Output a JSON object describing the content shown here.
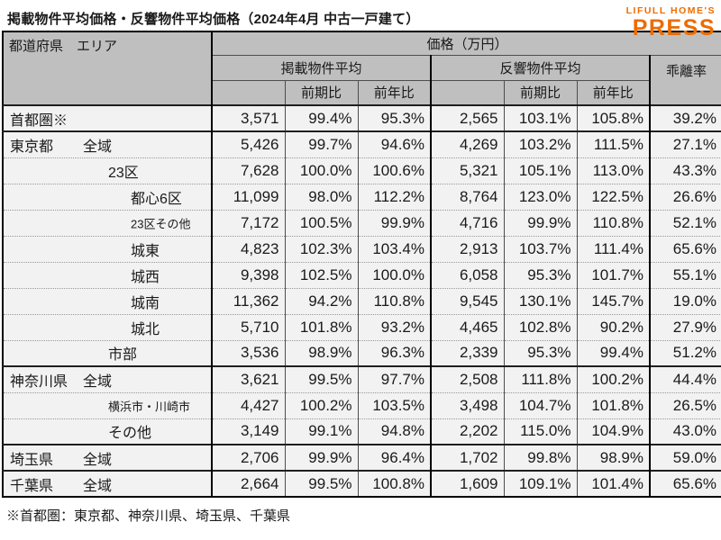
{
  "title": "掲載物件平均価格・反響物件平均価格（2024年4月 中古一戸建て）",
  "logo": {
    "line1": "LIFULL HOME'S",
    "line2": "PRESS",
    "color": "#ed6c00"
  },
  "table": {
    "headers": {
      "area_header": "都道府県　エリア",
      "price_header": "価格（万円）",
      "listed_avg": "掲載物件平均",
      "inquiry_avg": "反響物件平均",
      "divergence": "乖離率",
      "prev_period": "前期比",
      "prev_year": "前年比"
    },
    "column_names": [
      "listed-price",
      "listed-prev-period",
      "listed-prev-year",
      "inquiry-price",
      "inquiry-prev-period",
      "inquiry-prev-year",
      "divergence-rate"
    ],
    "rows": [
      {
        "pref": "首都圏※",
        "area": "",
        "level": 0,
        "small": false,
        "group_start": true,
        "values": [
          "3,571",
          "99.4%",
          "95.3%",
          "2,565",
          "103.1%",
          "105.8%",
          "39.2%"
        ]
      },
      {
        "pref": "東京都",
        "area": "全域",
        "level": 1,
        "small": false,
        "group_start": true,
        "values": [
          "5,426",
          "99.7%",
          "94.6%",
          "4,269",
          "103.2%",
          "111.5%",
          "27.1%"
        ]
      },
      {
        "pref": "",
        "area": "23区",
        "level": 2,
        "small": false,
        "group_start": false,
        "values": [
          "7,628",
          "100.0%",
          "100.6%",
          "5,321",
          "105.1%",
          "113.0%",
          "43.3%"
        ]
      },
      {
        "pref": "",
        "area": "都心6区",
        "level": 3,
        "small": false,
        "group_start": false,
        "values": [
          "11,099",
          "98.0%",
          "112.2%",
          "8,764",
          "123.0%",
          "122.5%",
          "26.6%"
        ]
      },
      {
        "pref": "",
        "area": "23区その他",
        "level": 3,
        "small": true,
        "group_start": false,
        "values": [
          "7,172",
          "100.5%",
          "99.9%",
          "4,716",
          "99.9%",
          "110.8%",
          "52.1%"
        ]
      },
      {
        "pref": "",
        "area": "城東",
        "level": 3,
        "small": false,
        "group_start": false,
        "values": [
          "4,823",
          "102.3%",
          "103.4%",
          "2,913",
          "103.7%",
          "111.4%",
          "65.6%"
        ]
      },
      {
        "pref": "",
        "area": "城西",
        "level": 3,
        "small": false,
        "group_start": false,
        "values": [
          "9,398",
          "102.5%",
          "100.0%",
          "6,058",
          "95.3%",
          "101.7%",
          "55.1%"
        ]
      },
      {
        "pref": "",
        "area": "城南",
        "level": 3,
        "small": false,
        "group_start": false,
        "values": [
          "11,362",
          "94.2%",
          "110.8%",
          "9,545",
          "130.1%",
          "145.7%",
          "19.0%"
        ]
      },
      {
        "pref": "",
        "area": "城北",
        "level": 3,
        "small": false,
        "group_start": false,
        "values": [
          "5,710",
          "101.8%",
          "93.2%",
          "4,465",
          "102.8%",
          "90.2%",
          "27.9%"
        ]
      },
      {
        "pref": "",
        "area": "市部",
        "level": 2,
        "small": false,
        "group_start": false,
        "values": [
          "3,536",
          "98.9%",
          "96.3%",
          "2,339",
          "95.3%",
          "99.4%",
          "51.2%"
        ]
      },
      {
        "pref": "神奈川県",
        "area": "全域",
        "level": 1,
        "small": false,
        "group_start": true,
        "values": [
          "3,621",
          "99.5%",
          "97.7%",
          "2,508",
          "111.8%",
          "100.2%",
          "44.4%"
        ]
      },
      {
        "pref": "",
        "area": "横浜市・川崎市",
        "level": 2,
        "small": true,
        "group_start": false,
        "values": [
          "4,427",
          "100.2%",
          "103.5%",
          "3,498",
          "104.7%",
          "101.8%",
          "26.5%"
        ]
      },
      {
        "pref": "",
        "area": "その他",
        "level": 2,
        "small": false,
        "group_start": false,
        "values": [
          "3,149",
          "99.1%",
          "94.8%",
          "2,202",
          "115.0%",
          "104.9%",
          "43.0%"
        ]
      },
      {
        "pref": "埼玉県",
        "area": "全域",
        "level": 1,
        "small": false,
        "group_start": true,
        "values": [
          "2,706",
          "99.9%",
          "96.4%",
          "1,702",
          "99.8%",
          "98.9%",
          "59.0%"
        ]
      },
      {
        "pref": "千葉県",
        "area": "全域",
        "level": 1,
        "small": false,
        "group_start": true,
        "values": [
          "2,664",
          "99.5%",
          "100.8%",
          "1,609",
          "109.1%",
          "101.4%",
          "65.6%"
        ]
      }
    ]
  },
  "footnote": "※首都圏：東京都、神奈川県、埼玉県、千葉県"
}
